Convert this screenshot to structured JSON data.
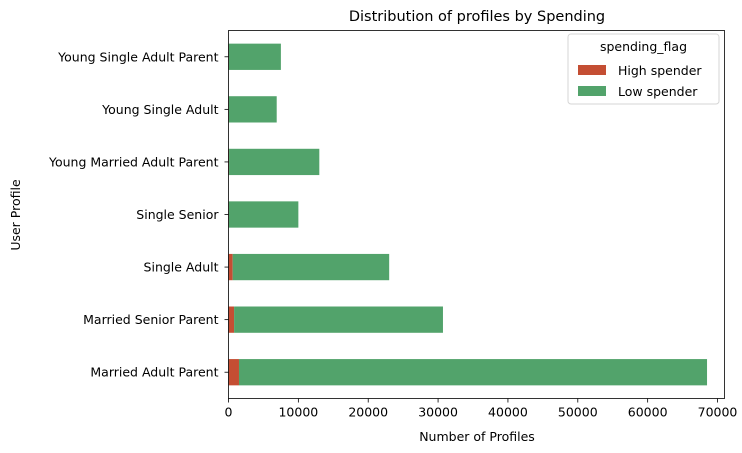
{
  "chart_data": {
    "type": "bar",
    "orientation": "horizontal",
    "stacked": true,
    "title": "Distribution of profiles by Spending",
    "xlabel": "Number of Profiles",
    "ylabel": "User Profile",
    "xlim": [
      0,
      71000
    ],
    "xticks": [
      0,
      10000,
      20000,
      30000,
      40000,
      50000,
      60000,
      70000
    ],
    "xtick_labels": [
      "0",
      "10000",
      "20000",
      "30000",
      "40000",
      "50000",
      "60000",
      "70000"
    ],
    "categories": [
      "Married Adult Parent",
      "Married Senior Parent",
      "Single Adult",
      "Single Senior",
      "Young Married Adult Parent",
      "Young Single Adult",
      "Young Single Adult Parent"
    ],
    "series": [
      {
        "name": "High spender",
        "color": "#c44e33",
        "values": [
          1500,
          800,
          600,
          50,
          80,
          50,
          50
        ]
      },
      {
        "name": "Low spender",
        "color": "#52a36b",
        "values": [
          67000,
          29900,
          22400,
          9950,
          12920,
          6850,
          7450
        ]
      }
    ],
    "legend": {
      "title": "spending_flag",
      "position": "top-right"
    },
    "grid": false
  }
}
